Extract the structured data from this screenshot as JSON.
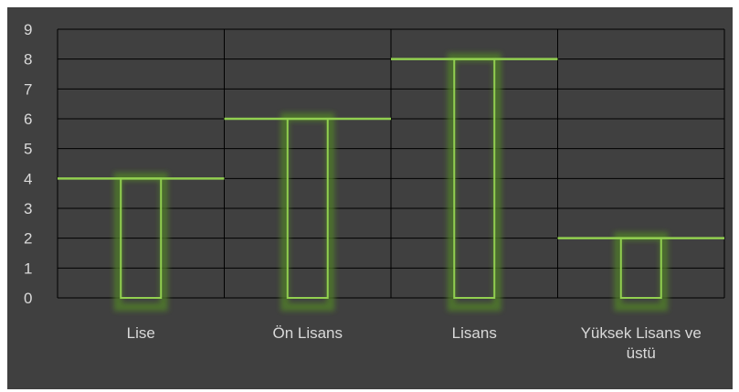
{
  "chart_data": {
    "type": "bar",
    "title": "",
    "xlabel": "",
    "ylabel": "",
    "categories": [
      [
        "Lise"
      ],
      [
        "Ön Lisans"
      ],
      [
        "Lisans"
      ],
      [
        "Yüksek Lisans ve",
        "üstü"
      ]
    ],
    "values": [
      4,
      6,
      8,
      2
    ],
    "ylim": [
      0,
      9
    ],
    "yticks": [
      "0",
      "1",
      "2",
      "3",
      "4",
      "5",
      "6",
      "7",
      "8",
      "9"
    ],
    "grid": true,
    "legend": "none",
    "colors": {
      "background": "#404040",
      "bar_line": "#92d050",
      "bar_glow": "#4f7a2a",
      "grid": "#000000",
      "text": "#d9d9d9"
    }
  }
}
